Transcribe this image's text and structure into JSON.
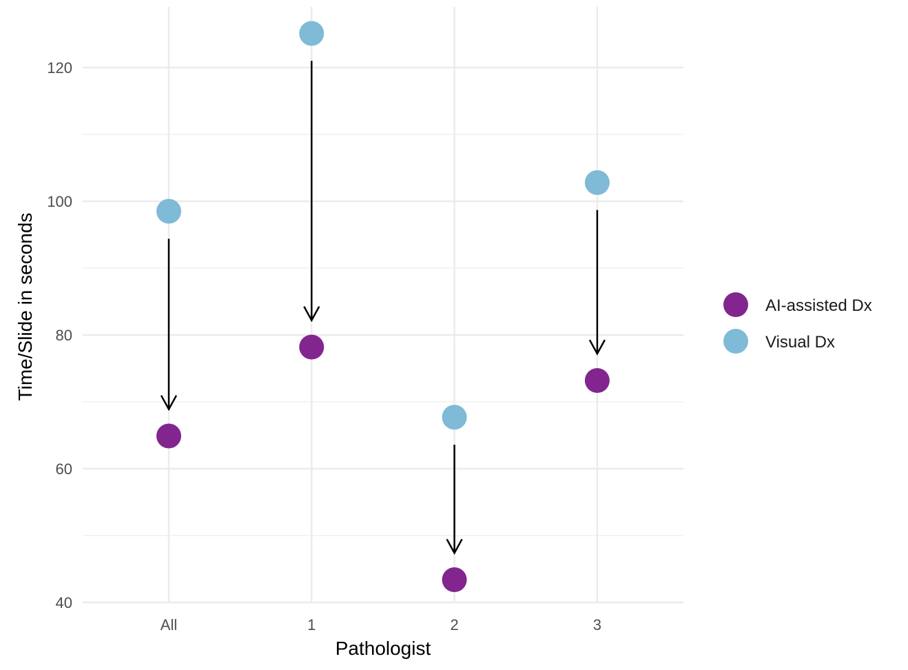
{
  "chart_data": {
    "type": "scatter",
    "xlabel": "Pathologist",
    "ylabel": "Time/Slide in seconds",
    "categories": [
      "All",
      "1",
      "2",
      "3"
    ],
    "ylim": [
      40,
      129
    ],
    "yticks": [
      40,
      60,
      80,
      100,
      120
    ],
    "grid": true,
    "legend_position": "right",
    "series": [
      {
        "name": "AI-assisted Dx",
        "color": "#82258f",
        "values": [
          64.9,
          78.2,
          43.4,
          73.2
        ]
      },
      {
        "name": "Visual Dx",
        "color": "#7fbad7",
        "values": [
          98.5,
          125.1,
          67.7,
          102.8
        ]
      }
    ],
    "annotations": "arrows from Visual Dx down to AI-assisted Dx for each pathologist"
  }
}
